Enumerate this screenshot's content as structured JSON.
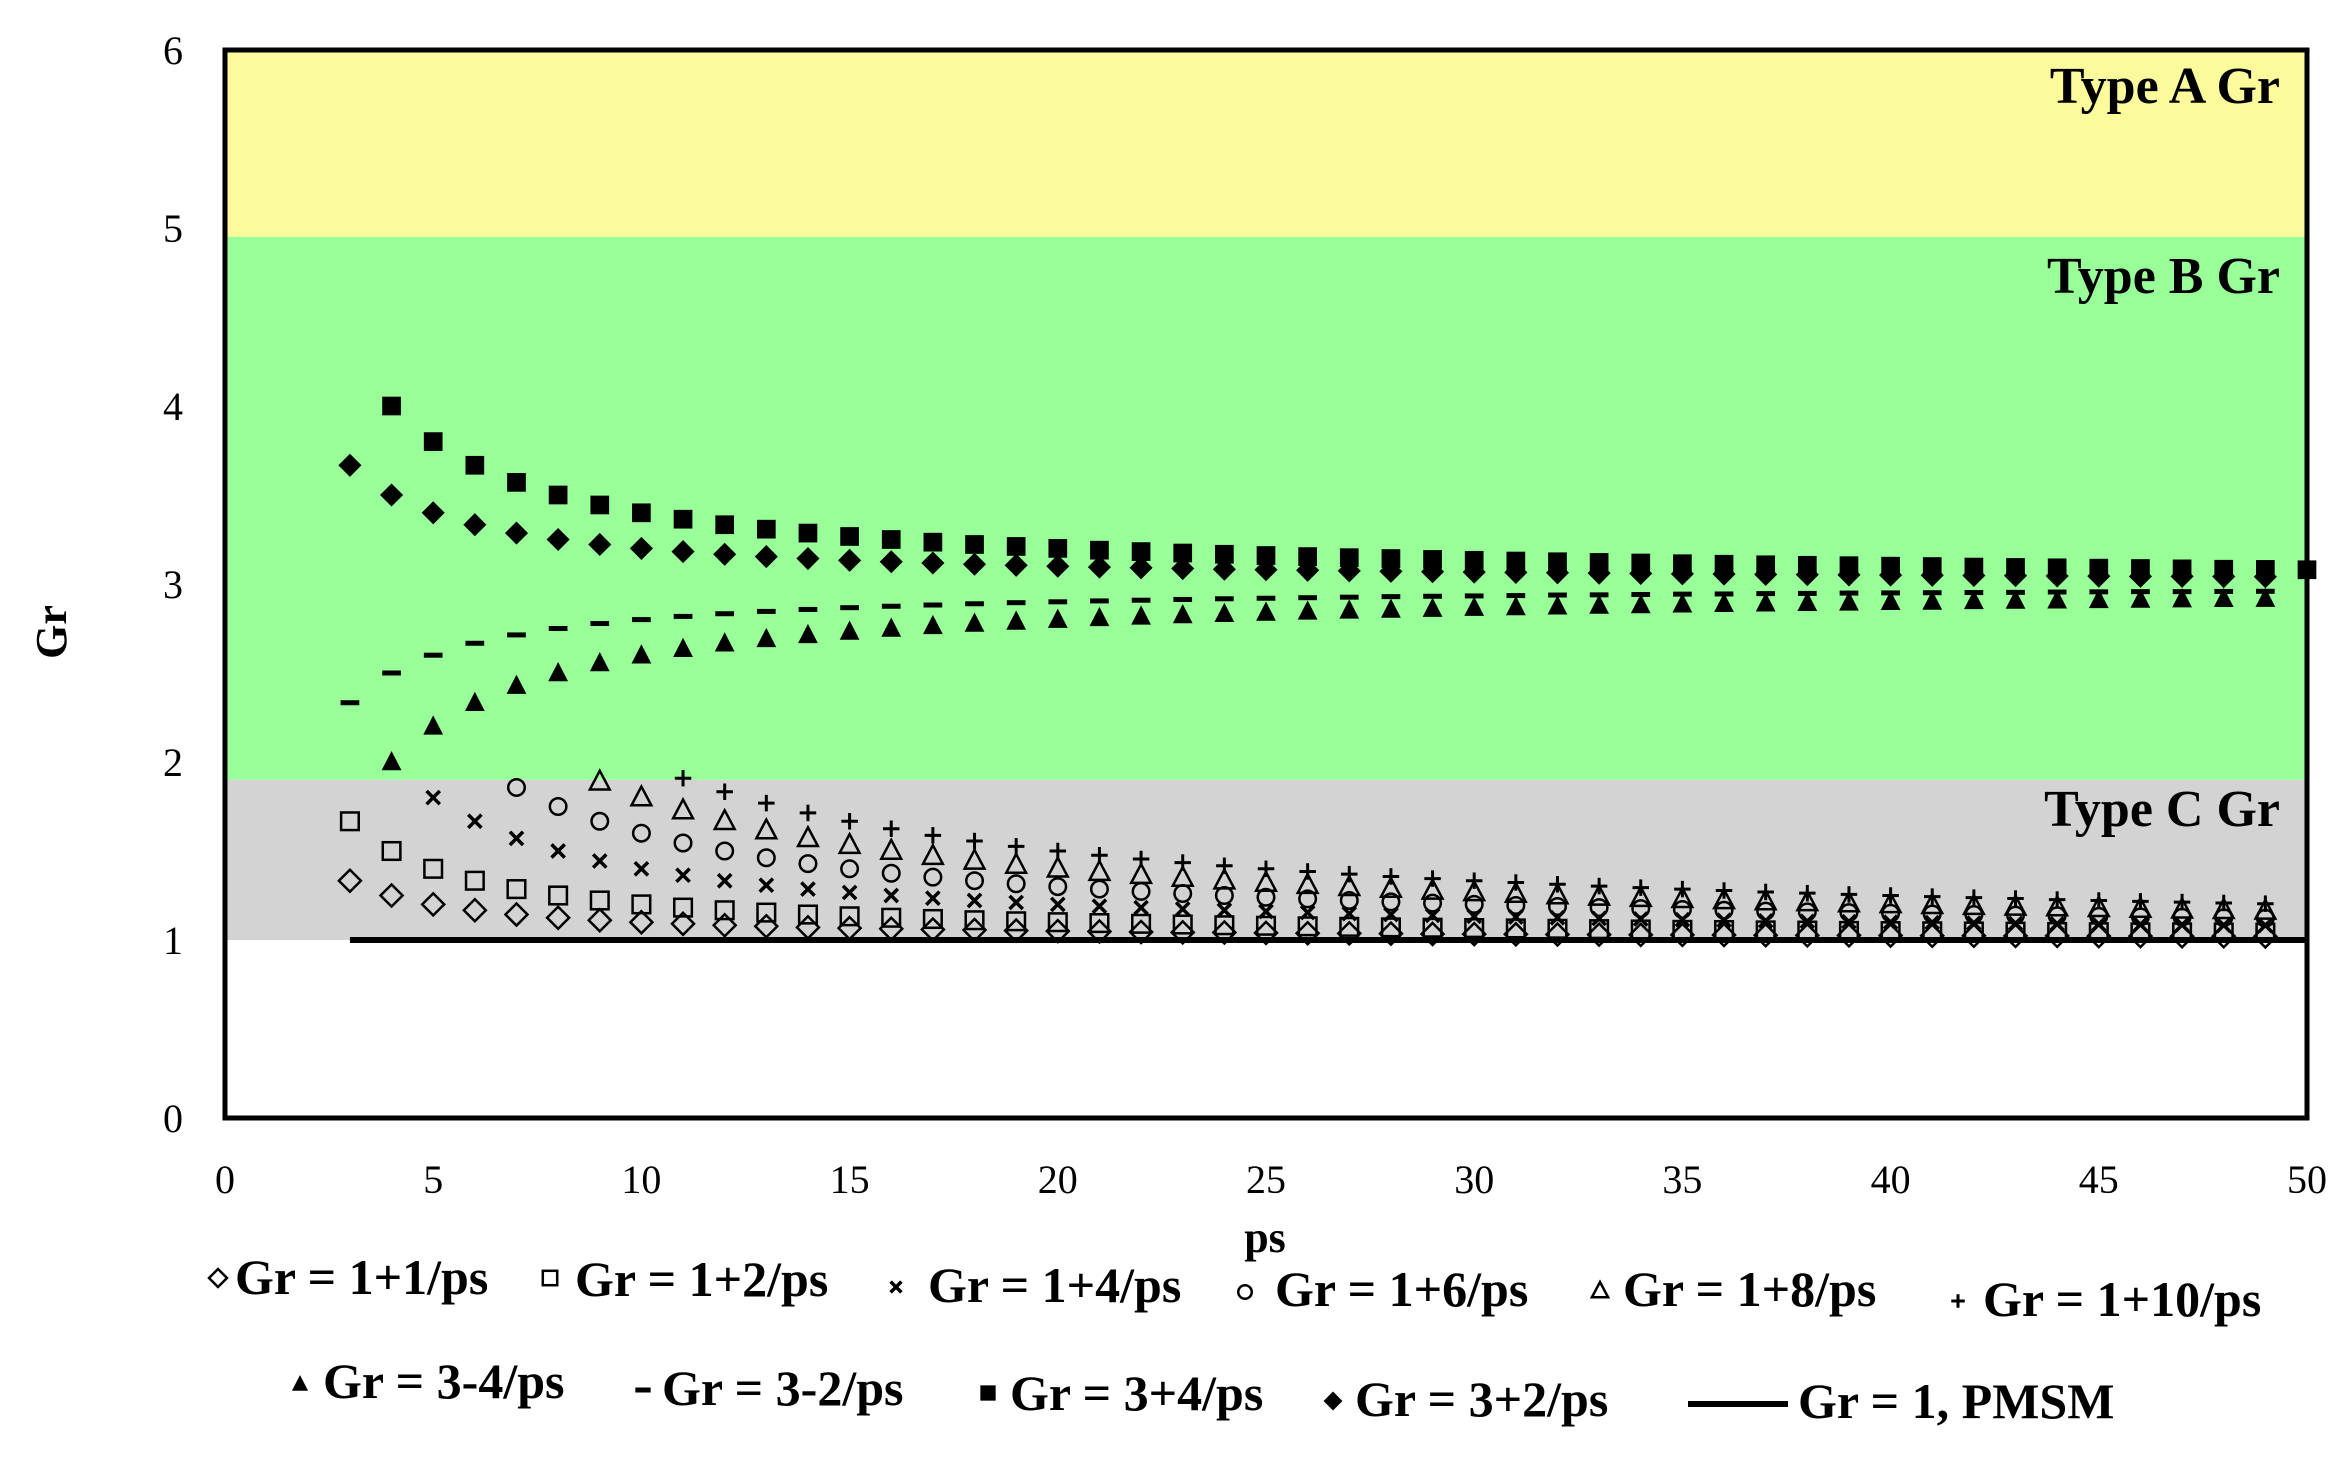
{
  "chart_data": {
    "type": "scatter",
    "xlabel": "ps",
    "ylabel": "Gr",
    "xlim": [
      0,
      50
    ],
    "ylim": [
      0,
      6
    ],
    "x_ticks": [
      0,
      5,
      10,
      15,
      20,
      25,
      30,
      35,
      40,
      45,
      50
    ],
    "y_ticks": [
      0,
      1,
      2,
      3,
      4,
      5,
      6
    ],
    "grid": false,
    "legend_position": "bottom",
    "regions": [
      {
        "label": "Type A Gr",
        "y_from": 4.95,
        "y_to": 6,
        "color": "#fbfb9b"
      },
      {
        "label": "Type B Gr",
        "y_from": 1.9,
        "y_to": 4.95,
        "color": "#99ff99"
      },
      {
        "label": "Type C Gr",
        "y_from": 1.0,
        "y_to": 1.9,
        "color": "#d3d3d3"
      }
    ],
    "series": [
      {
        "name": "Gr = 1+1/ps",
        "marker": "diamond-open",
        "x_from": 3,
        "x_to": 49,
        "values": [
          1.333,
          1.25,
          1.2,
          1.167,
          1.143,
          1.125,
          1.111,
          1.1,
          1.091,
          1.083,
          1.077,
          1.071,
          1.067,
          1.063,
          1.059,
          1.056,
          1.053,
          1.05,
          1.048,
          1.045,
          1.043,
          1.042,
          1.04,
          1.038,
          1.037,
          1.036,
          1.034,
          1.033,
          1.032,
          1.031,
          1.03,
          1.029,
          1.029,
          1.028,
          1.027,
          1.026,
          1.026,
          1.025,
          1.024,
          1.024,
          1.023,
          1.023,
          1.022,
          1.022,
          1.021,
          1.021,
          1.02
        ]
      },
      {
        "name": "Gr = 1+2/ps",
        "marker": "square-open",
        "x_from": 3,
        "x_to": 49,
        "values": [
          1.667,
          1.5,
          1.4,
          1.333,
          1.286,
          1.25,
          1.222,
          1.2,
          1.182,
          1.167,
          1.154,
          1.143,
          1.133,
          1.125,
          1.118,
          1.111,
          1.105,
          1.1,
          1.095,
          1.091,
          1.087,
          1.083,
          1.08,
          1.077,
          1.074,
          1.071,
          1.069,
          1.067,
          1.065,
          1.063,
          1.061,
          1.059,
          1.057,
          1.056,
          1.054,
          1.053,
          1.051,
          1.05,
          1.049,
          1.048,
          1.047,
          1.045,
          1.044,
          1.043,
          1.043,
          1.042,
          1.041
        ]
      },
      {
        "name": "Gr = 1+4/ps",
        "marker": "x",
        "x_from": 5,
        "x_to": 49,
        "values": [
          1.8,
          1.667,
          1.571,
          1.5,
          1.444,
          1.4,
          1.364,
          1.333,
          1.308,
          1.286,
          1.267,
          1.25,
          1.235,
          1.222,
          1.211,
          1.2,
          1.19,
          1.182,
          1.174,
          1.167,
          1.16,
          1.154,
          1.148,
          1.143,
          1.138,
          1.133,
          1.129,
          1.125,
          1.121,
          1.118,
          1.114,
          1.111,
          1.108,
          1.105,
          1.103,
          1.1,
          1.098,
          1.095,
          1.093,
          1.091,
          1.089,
          1.087,
          1.085,
          1.083,
          1.082
        ]
      },
      {
        "name": "Gr = 1+6/ps",
        "marker": "circle-open",
        "x_from": 7,
        "x_to": 49,
        "values": [
          1.857,
          1.75,
          1.667,
          1.6,
          1.545,
          1.5,
          1.462,
          1.429,
          1.4,
          1.375,
          1.353,
          1.333,
          1.316,
          1.3,
          1.286,
          1.273,
          1.261,
          1.25,
          1.24,
          1.231,
          1.222,
          1.214,
          1.207,
          1.2,
          1.194,
          1.188,
          1.182,
          1.176,
          1.171,
          1.167,
          1.162,
          1.158,
          1.154,
          1.15,
          1.146,
          1.143,
          1.14,
          1.136,
          1.133,
          1.13,
          1.128,
          1.125,
          1.122
        ]
      },
      {
        "name": "Gr = 1+8/ps",
        "marker": "triangle-open",
        "x_from": 9,
        "x_to": 49,
        "values": [
          1.889,
          1.8,
          1.727,
          1.667,
          1.615,
          1.571,
          1.533,
          1.5,
          1.471,
          1.444,
          1.421,
          1.4,
          1.381,
          1.364,
          1.348,
          1.333,
          1.32,
          1.308,
          1.296,
          1.286,
          1.276,
          1.267,
          1.258,
          1.25,
          1.242,
          1.235,
          1.229,
          1.222,
          1.216,
          1.211,
          1.205,
          1.2,
          1.195,
          1.19,
          1.186,
          1.182,
          1.178,
          1.174,
          1.17,
          1.167,
          1.163
        ]
      },
      {
        "name": "Gr = 1+10/ps",
        "marker": "plus",
        "x_from": 11,
        "x_to": 49,
        "values": [
          1.909,
          1.833,
          1.769,
          1.714,
          1.667,
          1.625,
          1.588,
          1.556,
          1.526,
          1.5,
          1.476,
          1.455,
          1.435,
          1.417,
          1.4,
          1.385,
          1.37,
          1.357,
          1.345,
          1.333,
          1.323,
          1.313,
          1.303,
          1.294,
          1.286,
          1.278,
          1.27,
          1.263,
          1.256,
          1.25,
          1.244,
          1.238,
          1.233,
          1.227,
          1.222,
          1.217,
          1.213,
          1.208,
          1.204
        ]
      },
      {
        "name": "Gr = 3-4/ps",
        "marker": "triangle-filled",
        "x_from": 4,
        "x_to": 49,
        "values": [
          2.0,
          2.2,
          2.333,
          2.429,
          2.5,
          2.556,
          2.6,
          2.636,
          2.667,
          2.692,
          2.714,
          2.733,
          2.75,
          2.765,
          2.778,
          2.789,
          2.8,
          2.81,
          2.818,
          2.826,
          2.833,
          2.84,
          2.846,
          2.852,
          2.857,
          2.862,
          2.867,
          2.871,
          2.875,
          2.879,
          2.882,
          2.886,
          2.889,
          2.892,
          2.895,
          2.897,
          2.9,
          2.902,
          2.905,
          2.907,
          2.909,
          2.911,
          2.913,
          2.915,
          2.917,
          2.918
        ]
      },
      {
        "name": "Gr = 3-2/ps",
        "marker": "dash",
        "x_from": 3,
        "x_to": 49,
        "values": [
          2.333,
          2.5,
          2.6,
          2.667,
          2.714,
          2.75,
          2.778,
          2.8,
          2.818,
          2.833,
          2.846,
          2.857,
          2.867,
          2.875,
          2.882,
          2.889,
          2.895,
          2.9,
          2.905,
          2.909,
          2.913,
          2.917,
          2.92,
          2.923,
          2.926,
          2.929,
          2.931,
          2.933,
          2.935,
          2.938,
          2.939,
          2.941,
          2.943,
          2.944,
          2.946,
          2.947,
          2.949,
          2.95,
          2.951,
          2.952,
          2.953,
          2.955,
          2.956,
          2.957,
          2.957,
          2.958,
          2.959
        ]
      },
      {
        "name": "Gr = 3+4/ps",
        "marker": "square-filled",
        "x_from": 4,
        "x_to": 50,
        "values": [
          4.0,
          3.8,
          3.667,
          3.571,
          3.5,
          3.444,
          3.4,
          3.364,
          3.333,
          3.308,
          3.286,
          3.267,
          3.25,
          3.235,
          3.222,
          3.211,
          3.2,
          3.19,
          3.182,
          3.174,
          3.167,
          3.16,
          3.154,
          3.148,
          3.143,
          3.138,
          3.133,
          3.129,
          3.125,
          3.121,
          3.118,
          3.114,
          3.111,
          3.108,
          3.105,
          3.103,
          3.1,
          3.098,
          3.095,
          3.093,
          3.091,
          3.089,
          3.087,
          3.085,
          3.083,
          3.082,
          3.08
        ]
      },
      {
        "name": "Gr = 3+2/ps",
        "marker": "diamond-filled",
        "x_from": 3,
        "x_to": 49,
        "values": [
          3.667,
          3.5,
          3.4,
          3.333,
          3.286,
          3.25,
          3.222,
          3.2,
          3.182,
          3.167,
          3.154,
          3.143,
          3.133,
          3.125,
          3.118,
          3.111,
          3.105,
          3.1,
          3.095,
          3.091,
          3.087,
          3.083,
          3.08,
          3.077,
          3.074,
          3.071,
          3.069,
          3.067,
          3.065,
          3.063,
          3.061,
          3.059,
          3.057,
          3.056,
          3.054,
          3.053,
          3.051,
          3.05,
          3.049,
          3.048,
          3.047,
          3.045,
          3.044,
          3.043,
          3.043,
          3.042,
          3.041
        ]
      },
      {
        "name": "Gr = 1, PMSM",
        "marker": "line",
        "x_from": 3,
        "x_to": 50,
        "values": [
          1,
          1
        ]
      }
    ]
  }
}
